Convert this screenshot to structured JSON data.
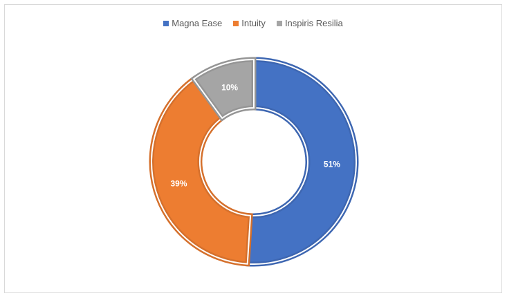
{
  "chart_data": {
    "type": "pie",
    "donut": true,
    "legend_position": "top",
    "categories": [
      "Magna Ease",
      "Intuity",
      "Inspiris Resilia"
    ],
    "values": [
      51,
      39,
      10
    ],
    "data_labels": [
      "51%",
      "39%",
      "10%"
    ],
    "colors": [
      "#4472c4",
      "#ed7d31",
      "#a5a5a5"
    ],
    "edge_colors": [
      "#3d66b1",
      "#d5702c",
      "#959595"
    ]
  }
}
